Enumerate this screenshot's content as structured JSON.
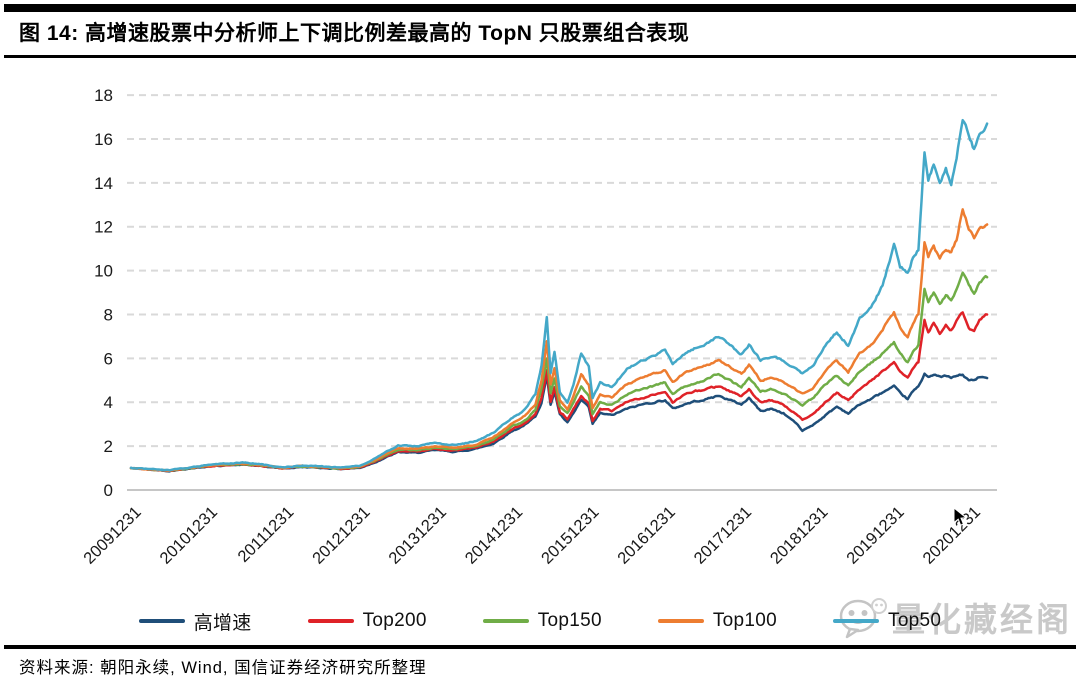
{
  "figure": {
    "title": "图 14: 高增速股票中分析师上下调比例差最高的 TopN 只股票组合表现",
    "source_note": "资料来源: 朝阳永续, Wind, 国信证券经济研究所整理",
    "watermark_text": "量化藏经阁"
  },
  "colors": {
    "rule": "#000000",
    "grid_dashed": "#d9d9d9",
    "axis_zero_line": "#c6c6c6",
    "tick_text": "#1a1a1a",
    "watermark_gray": "#c9c9c9"
  },
  "chart_data": {
    "type": "line",
    "title": "高增速股票中分析师上下调比例差最高的TopN只股票组合表现",
    "xlabel": "",
    "ylabel": "",
    "ylim": [
      0,
      18
    ],
    "y_ticks": [
      0,
      2,
      4,
      6,
      8,
      10,
      12,
      14,
      16,
      18
    ],
    "grid": "horizontal dashed",
    "legend_position": "bottom",
    "x_tick_labels": [
      "20091231",
      "20101231",
      "20111231",
      "20121231",
      "20131231",
      "20141231",
      "20151231",
      "20161231",
      "20171231",
      "20181231",
      "20191231",
      "20201231"
    ],
    "x_note": "years after first tick (20091231); series are cumulative net value, start = 1.0",
    "x": [
      0,
      0.25,
      0.5,
      0.75,
      1.0,
      1.25,
      1.5,
      1.75,
      2.0,
      2.25,
      2.5,
      2.75,
      3.0,
      3.2,
      3.35,
      3.5,
      3.75,
      4.0,
      4.25,
      4.5,
      4.75,
      5.0,
      5.1,
      5.2,
      5.3,
      5.38,
      5.45,
      5.5,
      5.55,
      5.62,
      5.72,
      5.8,
      5.9,
      6.0,
      6.05,
      6.15,
      6.3,
      6.5,
      6.7,
      6.85,
      7.0,
      7.1,
      7.25,
      7.4,
      7.55,
      7.7,
      7.85,
      8.0,
      8.1,
      8.25,
      8.4,
      8.55,
      8.7,
      8.8,
      8.95,
      9.1,
      9.25,
      9.4,
      9.55,
      9.7,
      9.85,
      10.0,
      10.08,
      10.18,
      10.25,
      10.32,
      10.4,
      10.45,
      10.52,
      10.6,
      10.68,
      10.75,
      10.82,
      10.9,
      10.98,
      11.05,
      11.12,
      11.22
    ],
    "series": [
      {
        "name": "高增速",
        "color": "#1F4E79",
        "values": [
          1.0,
          0.93,
          0.87,
          0.97,
          1.07,
          1.13,
          1.15,
          1.07,
          0.98,
          1.05,
          1.01,
          0.96,
          1.01,
          1.27,
          1.5,
          1.72,
          1.7,
          1.82,
          1.74,
          1.86,
          2.12,
          2.7,
          2.85,
          3.05,
          3.35,
          4.0,
          5.2,
          3.9,
          4.5,
          3.45,
          3.05,
          3.5,
          4.1,
          3.75,
          3.0,
          3.5,
          3.4,
          3.7,
          3.9,
          4.0,
          4.1,
          3.7,
          3.9,
          4.05,
          4.15,
          4.3,
          4.1,
          3.9,
          4.2,
          3.6,
          3.7,
          3.5,
          3.1,
          2.7,
          3.0,
          3.4,
          3.8,
          3.5,
          3.9,
          4.15,
          4.45,
          4.7,
          4.4,
          4.15,
          4.5,
          4.7,
          5.3,
          5.2,
          5.25,
          5.15,
          5.2,
          5.1,
          5.2,
          5.25,
          5.0,
          5.0,
          5.15,
          5.1
        ]
      },
      {
        "name": "Top200",
        "color": "#DF2228",
        "values": [
          1.0,
          0.93,
          0.87,
          0.98,
          1.08,
          1.14,
          1.17,
          1.08,
          0.99,
          1.07,
          1.03,
          0.97,
          1.03,
          1.3,
          1.55,
          1.78,
          1.76,
          1.88,
          1.8,
          1.92,
          2.2,
          2.8,
          2.95,
          3.15,
          3.45,
          4.2,
          5.45,
          4.05,
          4.7,
          3.6,
          3.25,
          3.7,
          4.3,
          3.95,
          3.15,
          3.7,
          3.6,
          4.0,
          4.2,
          4.35,
          4.45,
          4.0,
          4.3,
          4.5,
          4.6,
          4.75,
          4.5,
          4.25,
          4.6,
          4.0,
          4.1,
          3.9,
          3.5,
          3.2,
          3.5,
          4.0,
          4.4,
          4.1,
          4.6,
          5.0,
          5.4,
          5.8,
          5.4,
          5.1,
          5.5,
          5.8,
          7.8,
          7.2,
          7.6,
          7.1,
          7.5,
          7.3,
          7.7,
          8.1,
          7.4,
          7.2,
          7.7,
          8.0
        ]
      },
      {
        "name": "Top150",
        "color": "#70AD47",
        "values": [
          1.0,
          0.94,
          0.88,
          0.99,
          1.1,
          1.16,
          1.19,
          1.1,
          1.0,
          1.08,
          1.04,
          0.99,
          1.05,
          1.34,
          1.6,
          1.84,
          1.82,
          1.94,
          1.86,
          1.98,
          2.3,
          2.9,
          3.05,
          3.3,
          3.65,
          4.6,
          6.0,
          4.4,
          5.1,
          3.85,
          3.5,
          4.0,
          4.7,
          4.3,
          3.45,
          4.0,
          3.85,
          4.35,
          4.6,
          4.75,
          4.9,
          4.4,
          4.7,
          4.9,
          5.05,
          5.3,
          5.0,
          4.7,
          5.1,
          4.5,
          4.6,
          4.4,
          4.1,
          3.9,
          4.2,
          4.8,
          5.2,
          4.8,
          5.4,
          5.8,
          6.2,
          6.7,
          6.2,
          5.85,
          6.3,
          6.6,
          9.2,
          8.6,
          9.0,
          8.5,
          8.9,
          8.7,
          9.2,
          10.0,
          9.3,
          9.0,
          9.5,
          9.7
        ]
      },
      {
        "name": "Top100",
        "color": "#ED7D31",
        "values": [
          1.0,
          0.94,
          0.89,
          1.0,
          1.11,
          1.18,
          1.21,
          1.12,
          1.01,
          1.1,
          1.06,
          1.0,
          1.07,
          1.38,
          1.65,
          1.9,
          1.88,
          2.0,
          1.92,
          2.05,
          2.4,
          3.05,
          3.2,
          3.5,
          3.9,
          5.0,
          6.8,
          4.8,
          5.6,
          4.1,
          3.7,
          4.3,
          5.3,
          4.8,
          3.75,
          4.4,
          4.2,
          4.8,
          5.1,
          5.3,
          5.45,
          4.9,
          5.3,
          5.5,
          5.7,
          5.9,
          5.6,
          5.3,
          5.7,
          5.0,
          5.15,
          4.9,
          4.6,
          4.4,
          4.7,
          5.4,
          5.9,
          5.4,
          6.2,
          6.6,
          7.3,
          8.1,
          7.4,
          7.0,
          7.6,
          8.0,
          11.3,
          10.6,
          11.1,
          10.5,
          11.0,
          10.8,
          11.4,
          12.8,
          11.9,
          11.5,
          12.0,
          12.1
        ]
      },
      {
        "name": "Top50",
        "color": "#44A8C8",
        "values": [
          1.0,
          0.95,
          0.9,
          1.02,
          1.14,
          1.22,
          1.25,
          1.15,
          1.03,
          1.12,
          1.08,
          1.02,
          1.1,
          1.45,
          1.75,
          2.02,
          2.0,
          2.15,
          2.05,
          2.2,
          2.6,
          3.3,
          3.5,
          3.85,
          4.35,
          5.7,
          7.85,
          5.3,
          6.3,
          4.5,
          4.0,
          4.8,
          6.25,
          5.6,
          4.15,
          4.9,
          4.7,
          5.5,
          5.9,
          6.1,
          6.35,
          5.7,
          6.2,
          6.5,
          6.7,
          7.0,
          6.6,
          6.2,
          6.65,
          5.9,
          6.1,
          5.9,
          5.6,
          5.3,
          5.7,
          6.6,
          7.2,
          6.6,
          7.8,
          8.3,
          9.3,
          11.2,
          10.2,
          9.9,
          10.6,
          11.0,
          15.4,
          14.1,
          14.8,
          13.9,
          14.6,
          14.0,
          15.1,
          17.0,
          16.2,
          15.5,
          16.2,
          16.7
        ]
      }
    ],
    "legend_order": [
      "高增速",
      "Top200",
      "Top150",
      "Top100",
      "Top50"
    ]
  }
}
